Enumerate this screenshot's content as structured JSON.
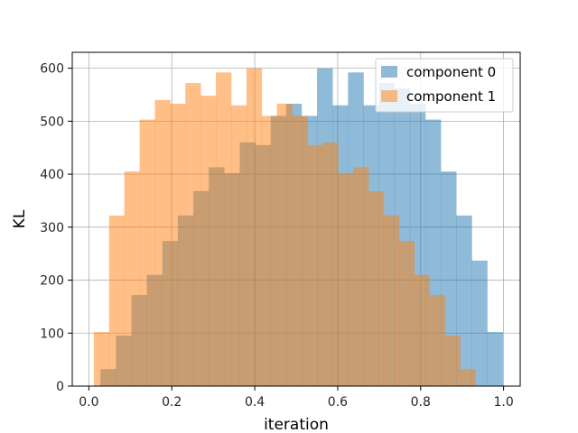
{
  "chart_data": {
    "type": "histogram",
    "title": "",
    "xlabel": "iteration",
    "ylabel": "KL",
    "xlim": [
      -0.04,
      1.04
    ],
    "ylim": [
      0,
      630
    ],
    "xticks": [
      0.0,
      0.2,
      0.4,
      0.6,
      0.8,
      1.0
    ],
    "xtick_labels": [
      "0.0",
      "0.2",
      "0.4",
      "0.6",
      "0.8",
      "1.0"
    ],
    "yticks": [
      0,
      100,
      200,
      300,
      400,
      500,
      600
    ],
    "ytick_labels": [
      "0",
      "100",
      "200",
      "300",
      "400",
      "500",
      "600"
    ],
    "grid": true,
    "legend_position": "top-right",
    "series": [
      {
        "name": "component 0",
        "color": "#1f77b4",
        "alpha": 0.5,
        "bin_start": 0.028,
        "bin_width": 0.0373,
        "values": [
          32,
          95,
          172,
          210,
          274,
          322,
          368,
          413,
          402,
          460,
          455,
          510,
          533,
          510,
          600,
          530,
          592,
          530,
          572,
          562,
          533,
          503,
          405,
          322,
          237,
          102
        ]
      },
      {
        "name": "component 1",
        "color": "#ff7f0e",
        "alpha": 0.5,
        "bin_start": 0.012,
        "bin_width": 0.0368,
        "values": [
          102,
          322,
          405,
          503,
          540,
          533,
          572,
          548,
          592,
          530,
          600,
          510,
          533,
          510,
          455,
          460,
          402,
          413,
          368,
          322,
          274,
          210,
          172,
          95,
          32
        ]
      }
    ]
  }
}
